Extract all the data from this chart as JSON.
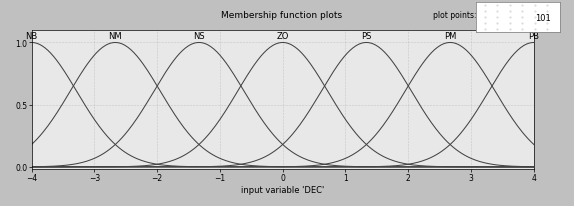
{
  "title": "Membership function plots",
  "xlabel": "input variable 'DEC'",
  "xlim": [
    -4,
    4
  ],
  "xticks": [
    -4,
    -3,
    -2,
    -1,
    0,
    1,
    2,
    3,
    4
  ],
  "yticks": [
    0,
    0.5,
    1
  ],
  "labels": [
    "NB",
    "NM",
    "NS",
    "ZO",
    "PS",
    "PM",
    "PB"
  ],
  "centers": [
    -4,
    -2.667,
    -1.333,
    0,
    1.333,
    2.667,
    4
  ],
  "sigma": 0.72,
  "line_color": "#444444",
  "bg_color": "#e8e8e8",
  "outer_bg": "#c0c0c0",
  "plot_points_label": "plot points:",
  "plot_points_value": "101",
  "title_fontsize": 6.5,
  "xlabel_fontsize": 6,
  "tick_fontsize": 5.5,
  "mf_label_fontsize": 6,
  "pp_label_fontsize": 5.5
}
